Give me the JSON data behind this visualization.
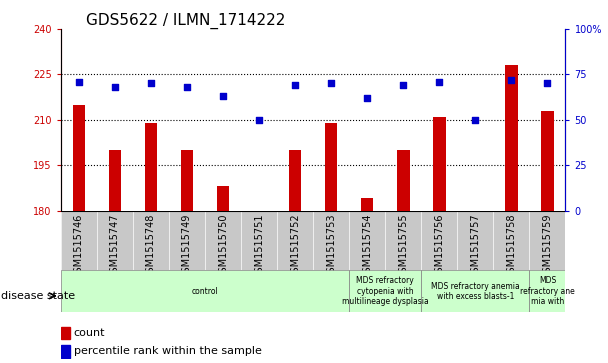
{
  "title": "GDS5622 / ILMN_1714222",
  "samples": [
    "GSM1515746",
    "GSM1515747",
    "GSM1515748",
    "GSM1515749",
    "GSM1515750",
    "GSM1515751",
    "GSM1515752",
    "GSM1515753",
    "GSM1515754",
    "GSM1515755",
    "GSM1515756",
    "GSM1515757",
    "GSM1515758",
    "GSM1515759"
  ],
  "counts": [
    215,
    200,
    209,
    200,
    188,
    180,
    200,
    209,
    184,
    200,
    211,
    180,
    228,
    213
  ],
  "percentiles": [
    71,
    68,
    70,
    68,
    63,
    50,
    69,
    70,
    62,
    69,
    71,
    50,
    72,
    70
  ],
  "ylim_left": [
    180,
    240
  ],
  "ylim_right": [
    0,
    100
  ],
  "yticks_left": [
    180,
    195,
    210,
    225,
    240
  ],
  "yticks_right": [
    0,
    25,
    50,
    75,
    100
  ],
  "bar_color": "#cc0000",
  "dot_color": "#0000cc",
  "tick_area_color": "#c8c8c8",
  "disease_groups": [
    {
      "label": "control",
      "start": 0,
      "end": 8,
      "color": "#ccffcc"
    },
    {
      "label": "MDS refractory\ncytopenia with\nmultilineage dysplasia",
      "start": 8,
      "end": 10,
      "color": "#ccffcc"
    },
    {
      "label": "MDS refractory anemia\nwith excess blasts-1",
      "start": 10,
      "end": 13,
      "color": "#ccffcc"
    },
    {
      "label": "MDS\nrefractory ane\nmia with",
      "start": 13,
      "end": 14,
      "color": "#ccffcc"
    }
  ],
  "title_fontsize": 11,
  "tick_fontsize": 7,
  "label_fontsize": 8
}
